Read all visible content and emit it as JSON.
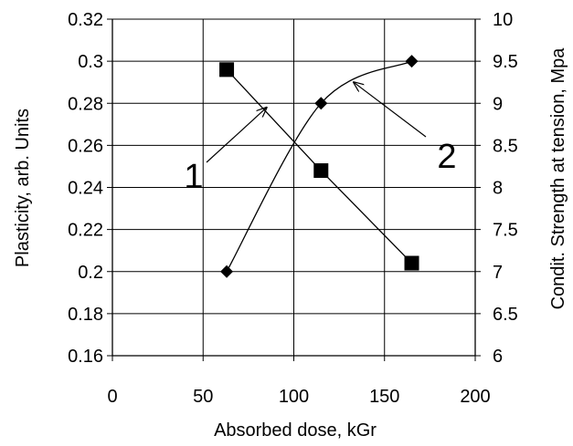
{
  "chart_data": {
    "type": "line",
    "xlabel": "Absorbed dose, kGr",
    "ylabel_left": "Plasticity, arb. Units",
    "ylabel_right": "Condit. Strength at tension, Mpa",
    "xlim": [
      0,
      200
    ],
    "ylim_left": [
      0.16,
      0.32
    ],
    "ylim_right": [
      6,
      10
    ],
    "x_ticks": [
      "0",
      "50",
      "100",
      "150",
      "200"
    ],
    "y_ticks_left": [
      "0.16",
      "0.18",
      "0.2",
      "0.22",
      "0.24",
      "0.26",
      "0.28",
      "0.3",
      "0.32"
    ],
    "y_ticks_right": [
      "6",
      "6.5",
      "7",
      "7.5",
      "8",
      "8.5",
      "9",
      "9.5",
      "10"
    ],
    "grid": true,
    "series": [
      {
        "axis": "left",
        "marker": "square",
        "color": "#000000",
        "x": [
          63,
          115,
          165
        ],
        "y": [
          0.296,
          0.248,
          0.204
        ]
      },
      {
        "axis": "right",
        "marker": "diamond",
        "color": "#000000",
        "x": [
          63,
          115,
          165
        ],
        "y": [
          7.0,
          9.0,
          9.5
        ]
      }
    ],
    "annotations": [
      {
        "text": "1",
        "target_x": 85,
        "target_y_left": 0.278
      },
      {
        "text": "2",
        "target_x": 133,
        "target_y_right": 9.25
      }
    ]
  }
}
